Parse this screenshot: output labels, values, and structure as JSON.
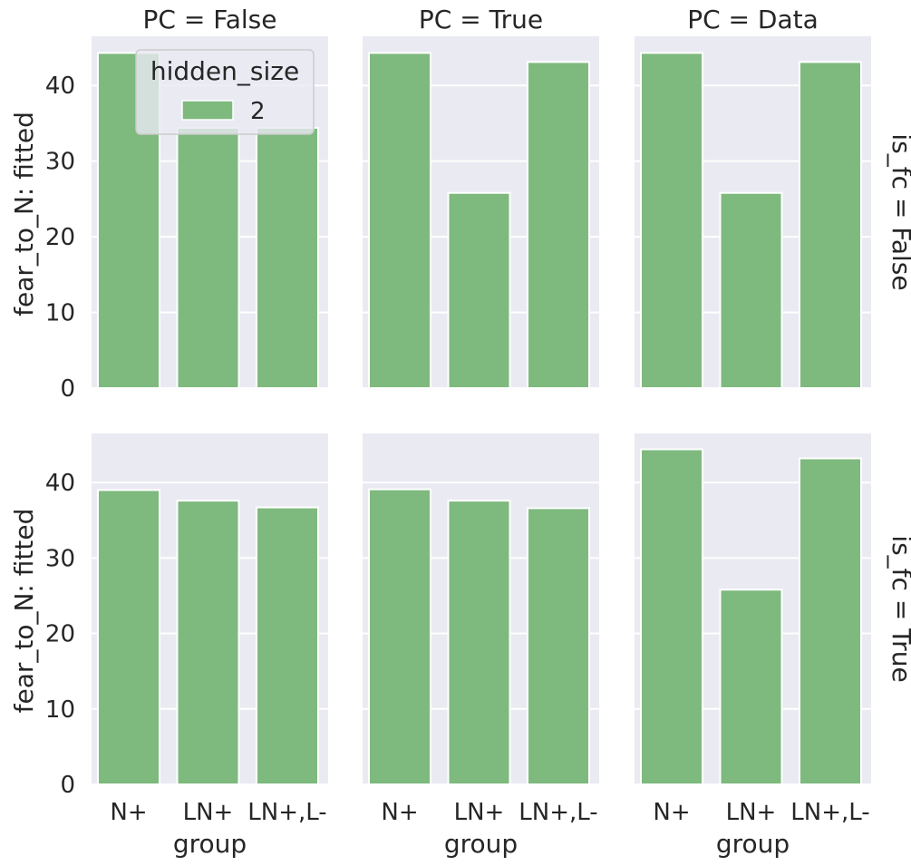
{
  "chart_data": {
    "type": "bar",
    "col_titles": [
      "PC = False",
      "PC = True",
      "PC = Data"
    ],
    "row_titles": [
      "is_fc = False",
      "is_fc = True"
    ],
    "xlabel": "group",
    "ylabel": "fear_to_N: fitted",
    "categories": [
      "N+",
      "LN+",
      "LN+,L-"
    ],
    "yticks": [
      "0",
      "10",
      "20",
      "30",
      "40"
    ],
    "ylim": [
      0,
      46.5
    ],
    "grid": true,
    "legend": {
      "title": "hidden_size",
      "entries": [
        "2"
      ],
      "placement": "top-right of first panel"
    },
    "color": "#7eb97e",
    "panels": [
      {
        "row": 0,
        "col": 0,
        "values": [
          44.3,
          34.4,
          34.4
        ]
      },
      {
        "row": 0,
        "col": 1,
        "values": [
          44.3,
          25.8,
          43.1
        ]
      },
      {
        "row": 0,
        "col": 2,
        "values": [
          44.3,
          25.8,
          43.1
        ]
      },
      {
        "row": 1,
        "col": 0,
        "values": [
          39.0,
          37.6,
          36.7
        ]
      },
      {
        "row": 1,
        "col": 1,
        "values": [
          39.1,
          37.6,
          36.6
        ]
      },
      {
        "row": 1,
        "col": 2,
        "values": [
          44.4,
          25.8,
          43.2
        ]
      }
    ]
  }
}
